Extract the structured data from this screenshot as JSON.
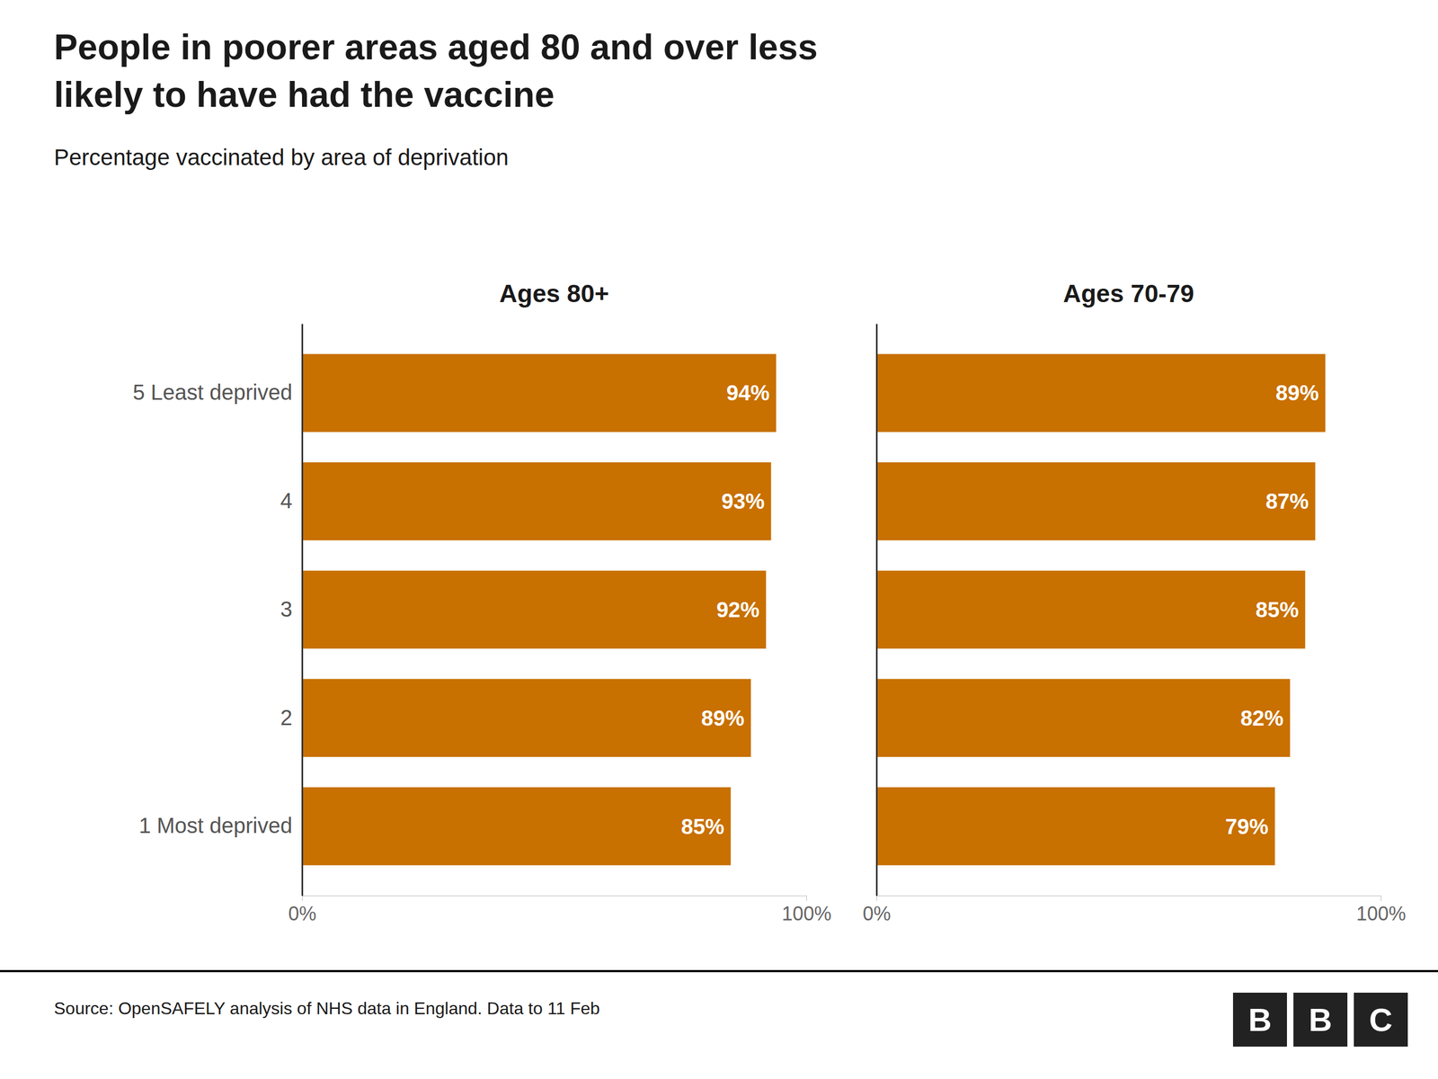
{
  "chart_data": {
    "type": "bar",
    "orientation": "horizontal",
    "title": [
      "People in poorer areas aged 80 and over less",
      "likely to have had the vaccine"
    ],
    "subtitle": "Percentage vaccinated by area of deprivation",
    "categories": [
      "5 Least deprived",
      "4",
      "3",
      "2",
      "1 Most deprived"
    ],
    "series": [
      {
        "name": "Ages 80+",
        "values": [
          94,
          93,
          92,
          89,
          85
        ],
        "value_labels": [
          "94%",
          "93%",
          "92%",
          "89%",
          "85%"
        ]
      },
      {
        "name": "Ages 70-79",
        "values": [
          89,
          87,
          85,
          82,
          79
        ],
        "value_labels": [
          "89%",
          "87%",
          "85%",
          "82%",
          "79%"
        ]
      }
    ],
    "color": "#c87000",
    "xlim": [
      0,
      100
    ],
    "xticks": [
      {
        "value": 0,
        "label": "0%"
      },
      {
        "value": 100,
        "label": "100%"
      }
    ],
    "grid": false,
    "data_labels": true,
    "source": "Source: OpenSAFELY analysis of NHS data in England. Data to 11 Feb",
    "logo_letters": [
      "B",
      "B",
      "C"
    ]
  }
}
